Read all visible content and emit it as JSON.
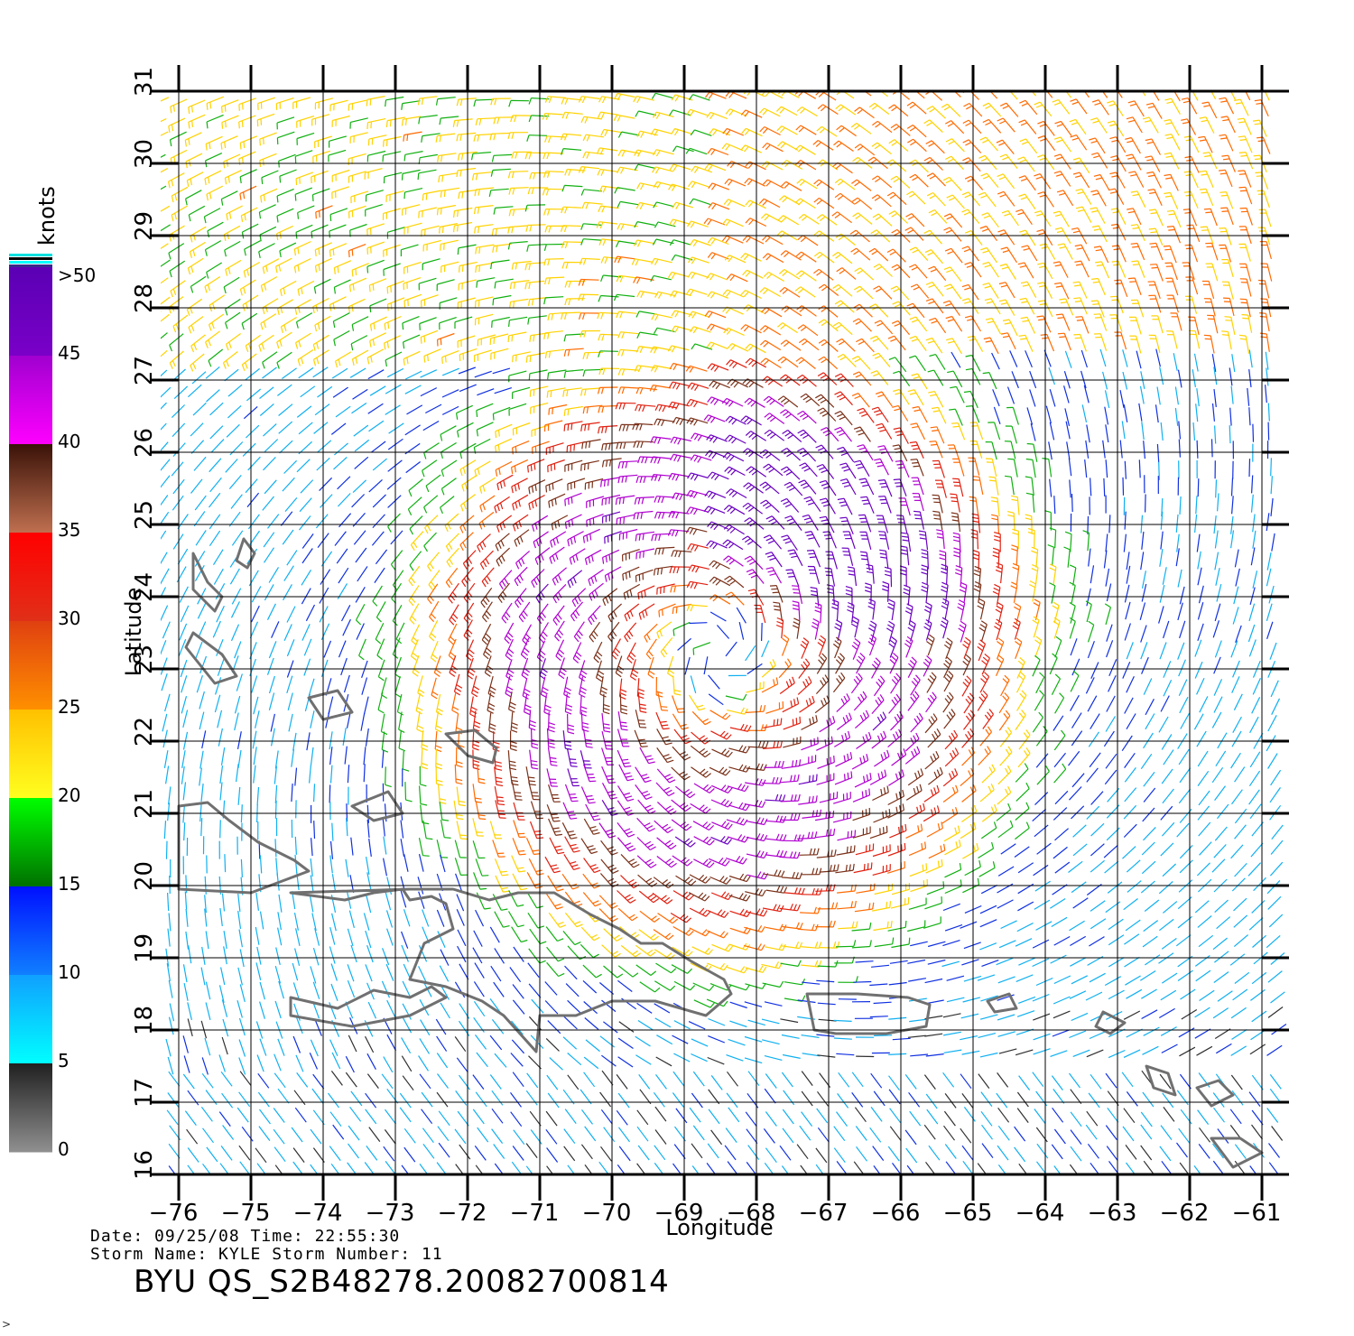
{
  "map": {
    "lon_range": [
      -76,
      -61
    ],
    "lat_range": [
      16,
      31
    ],
    "lon_ticks": [
      "−76",
      "−75",
      "−74",
      "−73",
      "−72",
      "−71",
      "−70",
      "−69",
      "−68",
      "−67",
      "−66",
      "−65",
      "−64",
      "−63",
      "−62",
      "−61"
    ],
    "lat_ticks": [
      "16",
      "17",
      "18",
      "19",
      "20",
      "21",
      "22",
      "23",
      "24",
      "25",
      "26",
      "27",
      "28",
      "29",
      "30",
      "31"
    ],
    "xlabel": "Longitude",
    "ylabel": "Latitude",
    "grid": true,
    "storm_center": {
      "lon": -68.5,
      "lat": 23.2
    },
    "coast_color": "#707070"
  },
  "colorbar": {
    "unit": "knots",
    "labels": [
      ">50",
      "45",
      "40",
      "35",
      "30",
      "25",
      "20",
      "15",
      "10",
      "5",
      "0"
    ],
    "bands": [
      {
        "range": [
          45,
          50
        ],
        "top": "#5a00b4",
        "bottom": "#7a00c8"
      },
      {
        "range": [
          40,
          45
        ],
        "top": "#a000d0",
        "bottom": "#ff00ff"
      },
      {
        "range": [
          35,
          40
        ],
        "top": "#3a1208",
        "bottom": "#c07050"
      },
      {
        "range": [
          30,
          35
        ],
        "top": "#ff0000",
        "bottom": "#e03018"
      },
      {
        "range": [
          25,
          30
        ],
        "top": "#e04010",
        "bottom": "#ff9000"
      },
      {
        "range": [
          20,
          25
        ],
        "top": "#ffc000",
        "bottom": "#ffff20"
      },
      {
        "range": [
          15,
          20
        ],
        "top": "#00ff00",
        "bottom": "#007000"
      },
      {
        "range": [
          10,
          15
        ],
        "top": "#0010ff",
        "bottom": "#1080ff"
      },
      {
        "range": [
          5,
          10
        ],
        "top": "#10a0ff",
        "bottom": "#00ffff"
      },
      {
        "range": [
          0,
          5
        ],
        "top": "#202020",
        "bottom": "#909090"
      }
    ]
  },
  "footer": {
    "line1": "Date: 09/25/08   Time: 22:55:30",
    "line2": "Storm  Name: KYLE    Storm  Number: 11",
    "title": "BYU  QS_S2B48278.20082700814"
  },
  "corner_mark": ">"
}
